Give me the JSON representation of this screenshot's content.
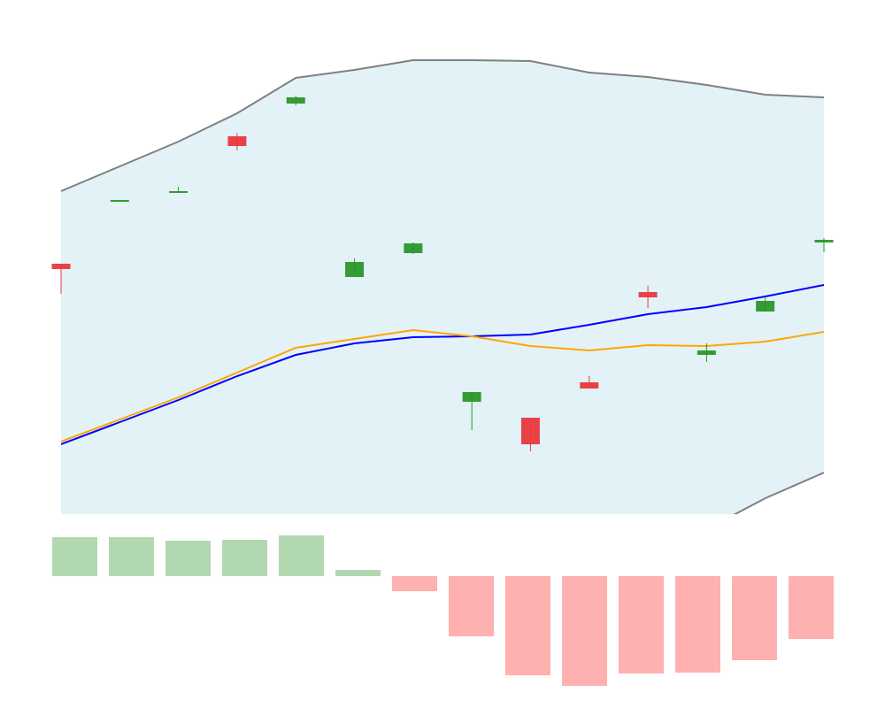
{
  "chart_data": [
    {
      "type": "candlestick",
      "categories": [
        null,
        null,
        null,
        null,
        null,
        null,
        null,
        null,
        null,
        null,
        null,
        null,
        null,
        null
      ],
      "open": [
        302,
        372,
        382,
        446,
        483,
        287,
        314,
        146,
        128,
        168,
        270,
        199,
        248,
        326
      ],
      "high": [
        302,
        374,
        389,
        450,
        492,
        308,
        326,
        157,
        128,
        175,
        277,
        212,
        265,
        331
      ],
      "low": [
        268,
        372,
        382,
        430,
        481,
        287,
        313,
        114,
        90,
        161,
        252,
        191,
        248,
        315
      ],
      "close": [
        296,
        374,
        384,
        435,
        490,
        304,
        325,
        157,
        98,
        161,
        264,
        204,
        260,
        329
      ],
      "up_color": "#2a962a",
      "down_color": "#e8383d",
      "ylim": [
        20,
        560
      ],
      "bands": {
        "upper": [
          384,
          412,
          440,
          472,
          512,
          521,
          532,
          532,
          531,
          518,
          513,
          504,
          493,
          490
        ],
        "lower": [
          -188,
          -166,
          -144,
          -122,
          -114,
          -97,
          -94,
          -92,
          -87,
          -52,
          -23,
          2,
          37,
          66
        ],
        "color": "#808080",
        "fill": "#e3f2f6"
      },
      "series": [
        {
          "color": "#0000ff",
          "values": [
            98,
            123,
            148,
            175,
            199,
            212,
            219,
            220,
            222,
            233,
            245,
            253,
            265,
            278
          ]
        },
        {
          "color": "#ffa500",
          "values": [
            101,
            126,
            151,
            179,
            207,
            217,
            227,
            220,
            209,
            204,
            210,
            209,
            214,
            225
          ]
        }
      ]
    },
    {
      "type": "bar",
      "categories": [
        null,
        null,
        null,
        null,
        null,
        null,
        null,
        null,
        null,
        null,
        null,
        null,
        null,
        null
      ],
      "values": [
        44,
        44,
        40,
        41,
        46,
        7,
        -17,
        -68,
        -112,
        -124,
        -110,
        -109,
        -95,
        -71
      ],
      "colors": {
        "positive": "#b2d8b2",
        "negative": "#ffb0b0"
      },
      "ylim": [
        -130,
        50
      ]
    }
  ]
}
